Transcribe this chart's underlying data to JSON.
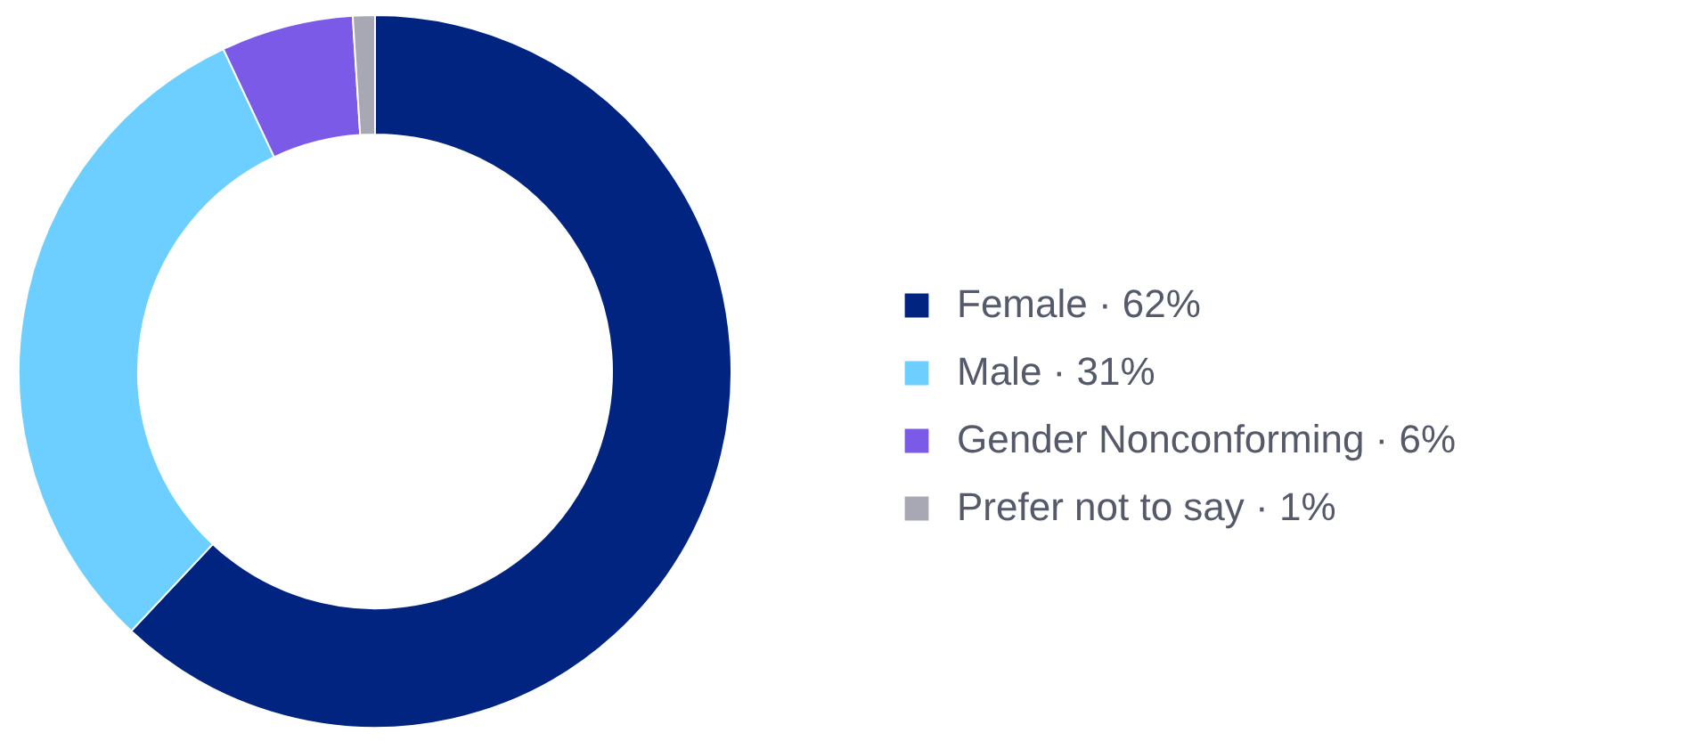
{
  "chart_data": {
    "type": "donut",
    "categories": [
      "Female · 62%",
      "Male · 31%",
      "Gender Nonconforming · 6%",
      "Prefer not to say · 1%"
    ],
    "values": [
      62,
      31,
      6,
      1
    ],
    "colors": [
      "#002480",
      "#6dcfff",
      "#7a5ae6",
      "#a8a8b4"
    ],
    "legend": "right"
  }
}
